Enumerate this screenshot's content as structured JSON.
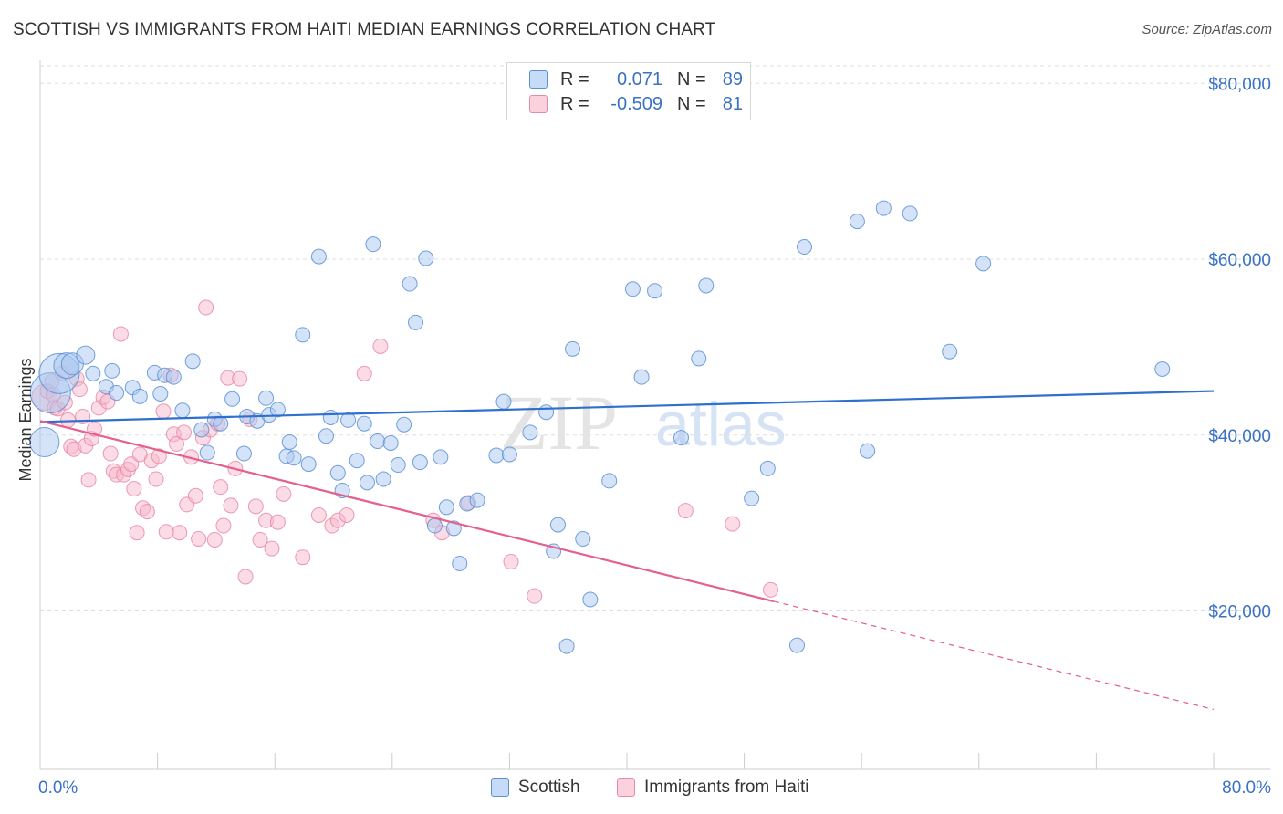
{
  "title": "SCOTTISH VS IMMIGRANTS FROM HAITI MEDIAN EARNINGS CORRELATION CHART",
  "source": "Source: ZipAtlas.com",
  "watermark": {
    "zip": "ZIP",
    "atlas": "atlas"
  },
  "legend": {
    "rows": [
      {
        "r_label": "R =",
        "r_value": "0.071",
        "n_label": "N =",
        "n_value": "89",
        "color": "#a9c7f0"
      },
      {
        "r_label": "R =",
        "r_value": "-0.509",
        "n_label": "N =",
        "n_value": "81",
        "color": "#f7b8cb"
      }
    ]
  },
  "bottom_legend": {
    "series1": "Scottish",
    "series2": "Immigrants from Haiti"
  },
  "x_axis": {
    "min_label": "0.0%",
    "max_label": "80.0%"
  },
  "colors": {
    "blue_fill": "#a9c7f0",
    "blue_stroke": "#5b8fd6",
    "blue_line": "#2f6fce",
    "pink_fill": "#f7b8cb",
    "pink_stroke": "#e88aa6",
    "pink_line": "#e4608d",
    "tick_text": "#3a72c4",
    "grid": "#dddddd"
  },
  "chart_data": {
    "type": "scatter",
    "title": "SCOTTISH VS IMMIGRANTS FROM HAITI MEDIAN EARNINGS CORRELATION CHART",
    "xlabel": "",
    "ylabel": "Median Earnings",
    "xlim": [
      0,
      80
    ],
    "ylim": [
      2000,
      82000
    ],
    "y_ticks": [
      20000,
      40000,
      60000,
      80000
    ],
    "y_tick_labels": [
      "$20,000",
      "$40,000",
      "$60,000",
      "$80,000"
    ],
    "grid": true,
    "legend_position": "top-center",
    "series": [
      {
        "name": "Scottish",
        "R": 0.071,
        "N": 89,
        "trend": {
          "x": [
            0,
            80
          ],
          "y": [
            41500,
            45000
          ],
          "dashed_from": null
        },
        "points": [
          [
            0.3,
            39200,
            16
          ],
          [
            0.7,
            44800,
            22
          ],
          [
            1.3,
            47000,
            22
          ],
          [
            1.8,
            47900,
            14
          ],
          [
            2.2,
            48100,
            12
          ],
          [
            3.1,
            49100,
            10
          ],
          [
            3.6,
            47000,
            8
          ],
          [
            4.5,
            45500,
            8
          ],
          [
            4.9,
            47300,
            8
          ],
          [
            5.2,
            44800,
            8
          ],
          [
            6.3,
            45400,
            8
          ],
          [
            6.8,
            44400,
            8
          ],
          [
            7.8,
            47100,
            8
          ],
          [
            8.2,
            44700,
            8
          ],
          [
            8.5,
            46800,
            8
          ],
          [
            9.1,
            46600,
            8
          ],
          [
            9.7,
            42800,
            8
          ],
          [
            10.4,
            48400,
            8
          ],
          [
            11.0,
            40600,
            8
          ],
          [
            11.4,
            38000,
            8
          ],
          [
            11.9,
            41800,
            8
          ],
          [
            12.3,
            41300,
            8
          ],
          [
            13.1,
            44100,
            8
          ],
          [
            13.9,
            37900,
            8
          ],
          [
            14.1,
            42100,
            8
          ],
          [
            14.8,
            41600,
            8
          ],
          [
            15.4,
            44200,
            8
          ],
          [
            15.6,
            42300,
            8
          ],
          [
            16.2,
            42900,
            8
          ],
          [
            16.8,
            37600,
            8
          ],
          [
            17.0,
            39200,
            8
          ],
          [
            17.3,
            37400,
            8
          ],
          [
            17.9,
            51400,
            8
          ],
          [
            18.3,
            36700,
            8
          ],
          [
            19.0,
            60300,
            8
          ],
          [
            19.5,
            39900,
            8
          ],
          [
            19.8,
            42000,
            8
          ],
          [
            20.3,
            35700,
            8
          ],
          [
            20.6,
            33700,
            8
          ],
          [
            21.0,
            41700,
            8
          ],
          [
            21.6,
            37100,
            8
          ],
          [
            22.1,
            41300,
            8
          ],
          [
            22.3,
            34600,
            8
          ],
          [
            22.7,
            61700,
            8
          ],
          [
            23.0,
            39300,
            8
          ],
          [
            23.4,
            35000,
            8
          ],
          [
            23.9,
            39100,
            8
          ],
          [
            24.4,
            36600,
            8
          ],
          [
            24.8,
            41200,
            8
          ],
          [
            25.2,
            57200,
            8
          ],
          [
            25.6,
            52800,
            8
          ],
          [
            25.9,
            36900,
            8
          ],
          [
            26.3,
            60100,
            8
          ],
          [
            26.9,
            29700,
            8
          ],
          [
            27.3,
            37500,
            8
          ],
          [
            27.7,
            31800,
            8
          ],
          [
            28.2,
            29400,
            8
          ],
          [
            28.6,
            25400,
            8
          ],
          [
            29.1,
            32200,
            8
          ],
          [
            29.8,
            32600,
            8
          ],
          [
            31.1,
            37700,
            8
          ],
          [
            31.6,
            43800,
            8
          ],
          [
            32.0,
            37800,
            8
          ],
          [
            33.4,
            40300,
            8
          ],
          [
            34.5,
            42600,
            8
          ],
          [
            35.0,
            26800,
            8
          ],
          [
            35.3,
            29800,
            8
          ],
          [
            35.9,
            16000,
            8
          ],
          [
            36.3,
            49800,
            8
          ],
          [
            37.0,
            28200,
            8
          ],
          [
            37.5,
            21300,
            8
          ],
          [
            38.8,
            34800,
            8
          ],
          [
            40.4,
            56600,
            8
          ],
          [
            41.0,
            46600,
            8
          ],
          [
            41.9,
            56400,
            8
          ],
          [
            43.7,
            39700,
            8
          ],
          [
            44.9,
            48700,
            8
          ],
          [
            45.4,
            57000,
            8
          ],
          [
            48.5,
            32800,
            8
          ],
          [
            49.6,
            36200,
            8
          ],
          [
            51.6,
            16100,
            8
          ],
          [
            52.1,
            61400,
            8
          ],
          [
            55.7,
            64300,
            8
          ],
          [
            56.4,
            38200,
            8
          ],
          [
            57.5,
            65800,
            8
          ],
          [
            59.3,
            65200,
            8
          ],
          [
            62.0,
            49500,
            8
          ],
          [
            64.3,
            59500,
            8
          ],
          [
            76.5,
            47500,
            8
          ]
        ]
      },
      {
        "name": "Immigrants from Haiti",
        "R": -0.509,
        "N": 81,
        "trend": {
          "x": [
            0,
            80
          ],
          "y": [
            41600,
            8800
          ],
          "dashed_from": 50
        },
        "points": [
          [
            0.3,
            44300,
            14
          ],
          [
            0.5,
            45000,
            8
          ],
          [
            0.8,
            46100,
            8
          ],
          [
            0.9,
            44600,
            8
          ],
          [
            1.0,
            43100,
            8
          ],
          [
            1.2,
            43000,
            8
          ],
          [
            1.5,
            47000,
            8
          ],
          [
            1.7,
            43700,
            8
          ],
          [
            1.9,
            41700,
            8
          ],
          [
            2.1,
            38700,
            8
          ],
          [
            2.3,
            38400,
            8
          ],
          [
            2.5,
            46400,
            8
          ],
          [
            2.7,
            45200,
            8
          ],
          [
            2.9,
            42100,
            8
          ],
          [
            3.1,
            38800,
            8
          ],
          [
            3.3,
            34900,
            8
          ],
          [
            3.5,
            39600,
            8
          ],
          [
            3.7,
            40700,
            8
          ],
          [
            4.0,
            43100,
            8
          ],
          [
            4.3,
            44300,
            8
          ],
          [
            4.6,
            43800,
            8
          ],
          [
            4.8,
            37900,
            8
          ],
          [
            5.0,
            35900,
            8
          ],
          [
            5.2,
            35500,
            8
          ],
          [
            5.5,
            51500,
            8
          ],
          [
            5.7,
            35500,
            8
          ],
          [
            6.0,
            36100,
            8
          ],
          [
            6.2,
            36700,
            8
          ],
          [
            6.4,
            33900,
            8
          ],
          [
            6.6,
            28900,
            8
          ],
          [
            6.8,
            37800,
            8
          ],
          [
            7.0,
            31700,
            8
          ],
          [
            7.3,
            31300,
            8
          ],
          [
            7.6,
            37100,
            8
          ],
          [
            7.9,
            35000,
            8
          ],
          [
            8.1,
            37600,
            8
          ],
          [
            8.4,
            42700,
            8
          ],
          [
            8.6,
            29000,
            8
          ],
          [
            8.9,
            46800,
            8
          ],
          [
            9.1,
            40100,
            8
          ],
          [
            9.3,
            39000,
            8
          ],
          [
            9.5,
            28900,
            8
          ],
          [
            9.8,
            40300,
            8
          ],
          [
            10.0,
            32100,
            8
          ],
          [
            10.3,
            37500,
            8
          ],
          [
            10.6,
            33100,
            8
          ],
          [
            10.8,
            28200,
            8
          ],
          [
            11.1,
            39700,
            8
          ],
          [
            11.3,
            54500,
            8
          ],
          [
            11.6,
            40600,
            8
          ],
          [
            11.9,
            28100,
            8
          ],
          [
            12.1,
            41300,
            8
          ],
          [
            12.3,
            34100,
            8
          ],
          [
            12.5,
            29700,
            8
          ],
          [
            12.8,
            46500,
            8
          ],
          [
            13.0,
            32000,
            8
          ],
          [
            13.3,
            36200,
            8
          ],
          [
            13.6,
            46400,
            8
          ],
          [
            14.0,
            23900,
            8
          ],
          [
            14.3,
            41800,
            8
          ],
          [
            14.7,
            31900,
            8
          ],
          [
            15.0,
            28100,
            8
          ],
          [
            15.4,
            30300,
            8
          ],
          [
            15.8,
            27100,
            8
          ],
          [
            16.2,
            30100,
            8
          ],
          [
            16.6,
            33300,
            8
          ],
          [
            17.9,
            26100,
            8
          ],
          [
            19.0,
            30900,
            8
          ],
          [
            19.9,
            29700,
            8
          ],
          [
            20.3,
            30300,
            8
          ],
          [
            20.9,
            30900,
            8
          ],
          [
            22.1,
            47000,
            8
          ],
          [
            23.2,
            50100,
            8
          ],
          [
            26.8,
            30300,
            8
          ],
          [
            27.4,
            28900,
            8
          ],
          [
            29.2,
            32300,
            8
          ],
          [
            32.1,
            25600,
            8
          ],
          [
            33.7,
            21700,
            8
          ],
          [
            44.0,
            31400,
            8
          ],
          [
            47.2,
            29900,
            8
          ],
          [
            49.8,
            22400,
            8
          ]
        ]
      }
    ]
  }
}
